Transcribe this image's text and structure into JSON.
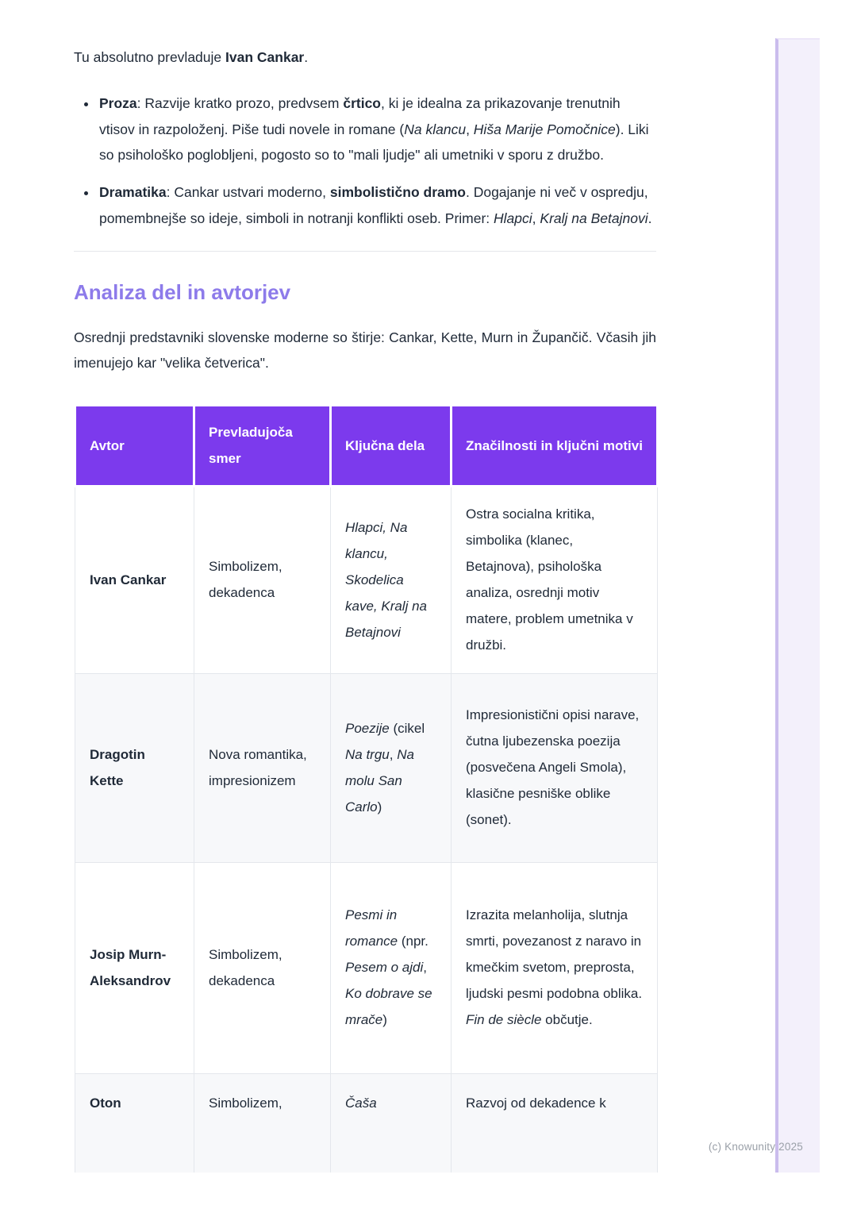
{
  "page": {
    "watermark": "(c) Knowunity 2025"
  },
  "intro": {
    "lead": [
      {
        "t": "Tu absolutno prevladuje "
      },
      {
        "t": "Ivan Cankar",
        "b": true
      },
      {
        "t": "."
      }
    ],
    "bullets": [
      [
        {
          "t": "Proza",
          "b": true
        },
        {
          "t": ": Razvije kratko prozo, predvsem "
        },
        {
          "t": "črtico",
          "b": true
        },
        {
          "t": ", ki je idealna za prikazovanje trenutnih vtisov in razpoloženj. Piše tudi novele in romane ("
        },
        {
          "t": "Na klancu",
          "i": true
        },
        {
          "t": ", "
        },
        {
          "t": "Hiša Marije Pomočnice",
          "i": true
        },
        {
          "t": "). Liki so psihološko poglobljeni, pogosto so to \"mali ljudje\" ali umetniki v sporu z družbo."
        }
      ],
      [
        {
          "t": "Dramatika",
          "b": true
        },
        {
          "t": ": Cankar ustvari moderno, "
        },
        {
          "t": "simbolistično dramo",
          "b": true
        },
        {
          "t": ". Dogajanje ni več v ospredju, pomembnejše so ideje, simboli in notranji konflikti oseb. Primer: "
        },
        {
          "t": "Hlapci",
          "i": true
        },
        {
          "t": ", "
        },
        {
          "t": "Kralj na Betajnovi",
          "i": true
        },
        {
          "t": "."
        }
      ]
    ]
  },
  "section": {
    "heading": "Analiza del in avtorjev",
    "paragraph": "Osrednji predstavniki slovenske moderne so štirje: Cankar, Kette, Murn in Župančič. Včasih jih imenujejo kar \"velika četverica\"."
  },
  "table": {
    "headers": [
      "Avtor",
      "Prevladujoča smer",
      "Ključna dela",
      "Značilnosti in ključni motivi"
    ],
    "rows": [
      {
        "avtor": "Ivan Cankar",
        "smer": "Simbolizem, dekadenca",
        "dela": [
          {
            "t": "Hlapci, Na klancu, Skodelica kave, Kralj na Betajnovi",
            "i": true
          }
        ],
        "znacilnosti": [
          {
            "t": "Ostra socialna kritika, simbolika (klanec, Betajnova), psihološka analiza, osrednji motiv matere, problem umetnika v družbi."
          }
        ]
      },
      {
        "avtor": "Dragotin Kette",
        "smer": "Nova romantika, impresionizem",
        "dela": [
          {
            "t": "Poezije",
            "i": true
          },
          {
            "t": " (cikel "
          },
          {
            "t": "Na trgu",
            "i": true
          },
          {
            "t": ", "
          },
          {
            "t": "Na molu San Carlo",
            "i": true
          },
          {
            "t": ")"
          }
        ],
        "znacilnosti": [
          {
            "t": "Impresionistični opisi narave, čutna ljubezenska poezija (posvečena Angeli Smola), klasične pesniške oblike (sonet)."
          }
        ]
      },
      {
        "avtor": "Josip Murn-Aleksandrov",
        "smer": "Simbolizem, dekadenca",
        "dela": [
          {
            "t": "Pesmi in romance",
            "i": true
          },
          {
            "t": " (npr. "
          },
          {
            "t": "Pesem o ajdi",
            "i": true
          },
          {
            "t": ", "
          },
          {
            "t": "Ko dobrave se mrače",
            "i": true
          },
          {
            "t": ")"
          }
        ],
        "znacilnosti": [
          {
            "t": "Izrazita melanholija, slutnja smrti, povezanost z naravo in kmečkim svetom, preprosta, ljudski pesmi podobna oblika. "
          },
          {
            "t": "Fin de siècle",
            "i": true
          },
          {
            "t": " občutje."
          }
        ]
      },
      {
        "avtor": "Oton",
        "smer": "Simbolizem,",
        "dela": [
          {
            "t": "Čaša",
            "i": true
          }
        ],
        "znacilnosti": [
          {
            "t": "Razvoj od dekadence k"
          }
        ]
      }
    ]
  },
  "colors": {
    "table_header_bg": "#7C3AED",
    "heading_text": "#8D7BEA",
    "body_text": "#1F2937",
    "row_stripe": "#F7F8FA",
    "page_edge_fill": "#F3F0FB",
    "page_edge_border": "#CABCED",
    "watermark_text": "#9AA0A8"
  }
}
